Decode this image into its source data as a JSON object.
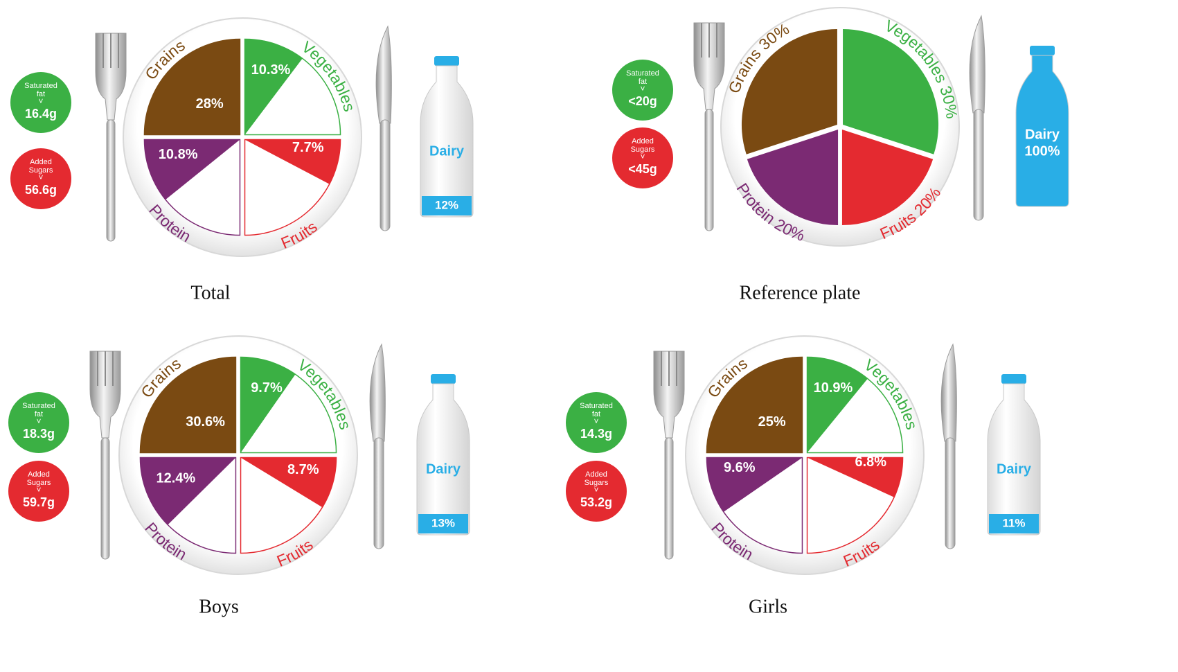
{
  "colors": {
    "grains": "#7a4a12",
    "vegetables": "#3bb044",
    "fruits": "#e42a30",
    "protein": "#7b2a73",
    "dairy": "#29aee6",
    "fat_badge": "#3bb044",
    "sugar_badge": "#e42a30",
    "plate": "#efefef",
    "plate_inner": "#ffffff"
  },
  "labels": {
    "grains": "Grains",
    "vegetables": "Vegetables",
    "fruits": "Fruits",
    "protein": "Protein",
    "dairy": "Dairy",
    "fat_badge_title": [
      "Saturated",
      "fat"
    ],
    "sugar_badge_title": [
      "Added",
      "Sugars"
    ],
    "badge_arrow": "˅"
  },
  "icons": [
    "fork-icon",
    "knife-icon",
    "milk-bottle-icon",
    "plate-icon"
  ],
  "chart_data": [
    {
      "type": "pie",
      "title": "Total",
      "slices": [
        {
          "category": "Grains",
          "value": 28,
          "label": "28%"
        },
        {
          "category": "Vegetables",
          "value": 10.3,
          "label": "10.3%"
        },
        {
          "category": "Fruits",
          "value": 7.7,
          "label": "7.7%"
        },
        {
          "category": "Protein",
          "value": 10.8,
          "label": "10.8%"
        }
      ],
      "dairy": {
        "value": 12,
        "label": "12%"
      },
      "saturated_fat": "16.4g",
      "added_sugars": "56.6g"
    },
    {
      "type": "pie",
      "title": "Reference plate",
      "slices": [
        {
          "category": "Grains",
          "value": 30,
          "label": "30%"
        },
        {
          "category": "Vegetables",
          "value": 30,
          "label": "30%"
        },
        {
          "category": "Fruits",
          "value": 20,
          "label": "20%"
        },
        {
          "category": "Protein",
          "value": 20,
          "label": "20%"
        }
      ],
      "dairy": {
        "value": 100,
        "label": "100%"
      },
      "saturated_fat": "<20g",
      "added_sugars": "<45g"
    },
    {
      "type": "pie",
      "title": "Boys",
      "slices": [
        {
          "category": "Grains",
          "value": 30.6,
          "label": "30.6%"
        },
        {
          "category": "Vegetables",
          "value": 9.7,
          "label": "9.7%"
        },
        {
          "category": "Fruits",
          "value": 8.7,
          "label": "8.7%"
        },
        {
          "category": "Protein",
          "value": 12.4,
          "label": "12.4%"
        }
      ],
      "dairy": {
        "value": 13,
        "label": "13%"
      },
      "saturated_fat": "18.3g",
      "added_sugars": "59.7g"
    },
    {
      "type": "pie",
      "title": "Girls",
      "slices": [
        {
          "category": "Grains",
          "value": 25,
          "label": "25%"
        },
        {
          "category": "Vegetables",
          "value": 10.9,
          "label": "10.9%"
        },
        {
          "category": "Fruits",
          "value": 6.8,
          "label": "6.8%"
        },
        {
          "category": "Protein",
          "value": 9.6,
          "label": "9.6%"
        }
      ],
      "dairy": {
        "value": 11,
        "label": "11%"
      },
      "saturated_fat": "14.3g",
      "added_sugars": "53.2g"
    }
  ]
}
